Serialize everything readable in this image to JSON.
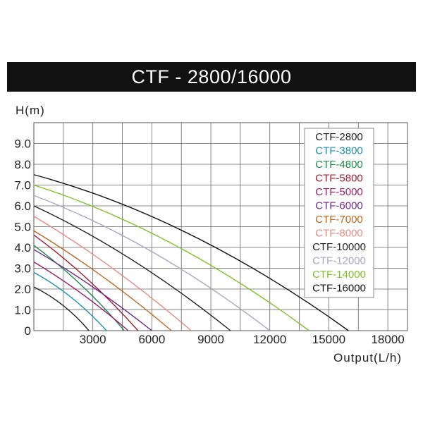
{
  "chart_data": {
    "type": "line",
    "title": "CTF - 2800/16000",
    "ylabel": "H(m)",
    "xlabel": "Output(L/h)",
    "xlim": [
      0,
      19000
    ],
    "ylim": [
      0,
      10
    ],
    "x_ticks": [
      {
        "value": 3000,
        "label": "3000"
      },
      {
        "value": 6000,
        "label": "6000"
      },
      {
        "value": 9000,
        "label": "9000"
      },
      {
        "value": 12000,
        "label": "12000"
      },
      {
        "value": 15000,
        "label": "15000"
      },
      {
        "value": 18000,
        "label": "18000"
      }
    ],
    "y_ticks": [
      {
        "value": 0,
        "label": "0"
      },
      {
        "value": 1,
        "label": "1.0"
      },
      {
        "value": 2,
        "label": "2.0"
      },
      {
        "value": 3,
        "label": "3.0"
      },
      {
        "value": 4,
        "label": "4.0"
      },
      {
        "value": 5,
        "label": "5.0"
      },
      {
        "value": 6,
        "label": "6.0"
      },
      {
        "value": 7,
        "label": "7.0"
      },
      {
        "value": 8,
        "label": "8.0"
      },
      {
        "value": 9,
        "label": "9.0"
      }
    ],
    "grid": true,
    "legend_position": "top-right",
    "series": [
      {
        "name": "CTF-2800",
        "color": "#222222",
        "x": [
          0,
          1500,
          2800
        ],
        "y": [
          2.1,
          1.2,
          0
        ]
      },
      {
        "name": "CTF-3800",
        "color": "#1f8fb0",
        "x": [
          0,
          1900,
          3700
        ],
        "y": [
          2.8,
          1.6,
          0
        ]
      },
      {
        "name": "CTF-4800",
        "color": "#1f8a4c",
        "x": [
          0,
          2400,
          4600
        ],
        "y": [
          4.1,
          2.2,
          0
        ]
      },
      {
        "name": "CTF-5800",
        "color": "#a01c2e",
        "x": [
          0,
          2700,
          5300
        ],
        "y": [
          4.6,
          2.5,
          0
        ]
      },
      {
        "name": "CTF-5000",
        "color": "#a01a6a",
        "x": [
          0,
          2400,
          4800
        ],
        "y": [
          3.3,
          1.8,
          0
        ]
      },
      {
        "name": "CTF-6000",
        "color": "#6a2a8a",
        "x": [
          0,
          3000,
          6000
        ],
        "y": [
          3.9,
          2.1,
          0
        ]
      },
      {
        "name": "CTF-7000",
        "color": "#c0661a",
        "x": [
          0,
          3500,
          7000
        ],
        "y": [
          4.8,
          2.6,
          0
        ]
      },
      {
        "name": "CTF-8000",
        "color": "#e88a80",
        "x": [
          0,
          4000,
          8000
        ],
        "y": [
          5.5,
          3.0,
          0
        ]
      },
      {
        "name": "CTF-10000",
        "color": "#222222",
        "x": [
          0,
          5000,
          10000
        ],
        "y": [
          6.0,
          3.4,
          0
        ]
      },
      {
        "name": "CTF-12000",
        "color": "#a8a8c0",
        "x": [
          0,
          6000,
          12000
        ],
        "y": [
          6.5,
          3.8,
          0
        ]
      },
      {
        "name": "CTF-14000",
        "color": "#7cc226",
        "x": [
          0,
          7000,
          14000
        ],
        "y": [
          7.0,
          4.2,
          0
        ]
      },
      {
        "name": "CTF-16000",
        "color": "#111111",
        "x": [
          0,
          8000,
          16000
        ],
        "y": [
          7.5,
          4.6,
          0
        ]
      }
    ]
  }
}
